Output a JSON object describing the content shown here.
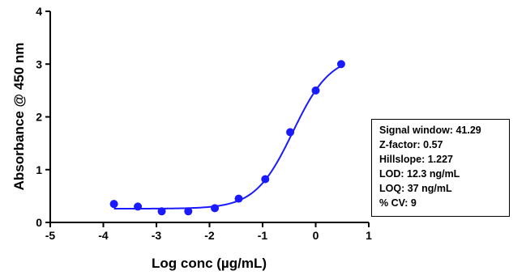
{
  "chart_data": {
    "type": "scatter",
    "xlabel": "Log conc (µg/mL)",
    "ylabel": "Absorbance @ 450 nm",
    "xlim": [
      -5,
      1
    ],
    "ylim": [
      0,
      4
    ],
    "x_ticks": [
      "-5",
      "-4",
      "-3",
      "-2",
      "-1",
      "0",
      "1"
    ],
    "y_ticks": [
      "0",
      "1",
      "2",
      "3",
      "4"
    ],
    "grid": false,
    "series": [
      {
        "color": "#1a1aff",
        "points": [
          {
            "x": -3.8,
            "y": 0.35
          },
          {
            "x": -3.35,
            "y": 0.3
          },
          {
            "x": -2.9,
            "y": 0.21
          },
          {
            "x": -2.4,
            "y": 0.21
          },
          {
            "x": -1.9,
            "y": 0.27
          },
          {
            "x": -1.45,
            "y": 0.45
          },
          {
            "x": -0.95,
            "y": 0.82
          },
          {
            "x": -0.48,
            "y": 1.71
          },
          {
            "x": 0.0,
            "y": 2.5
          },
          {
            "x": 0.48,
            "y": 3.0
          }
        ],
        "fit": {
          "model": "4PL",
          "bottom": 0.26,
          "top": 3.17,
          "log_ec50": -0.43,
          "hillslope": 1.227,
          "x_range": [
            -3.8,
            0.5
          ]
        }
      }
    ],
    "annotations": [
      "Signal window: 41.29",
      "Z-factor: 0.57",
      "Hillslope: 1.227",
      "LOD: 12.3 ng/mL",
      "LOQ: 37 ng/mL",
      "% CV: 9"
    ]
  }
}
